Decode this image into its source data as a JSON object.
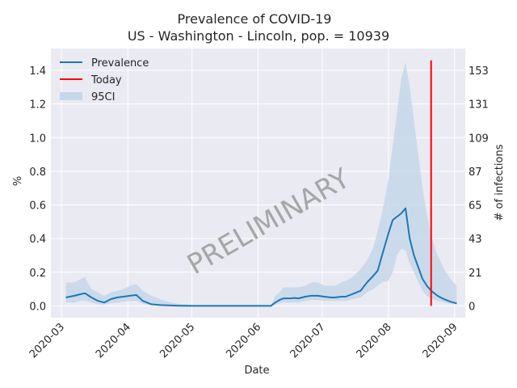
{
  "chart_data": {
    "type": "line",
    "title": "Prevalence of COVID-19",
    "subtitle": "US - Washington - Lincoln, pop. = 10939",
    "xlabel": "Date",
    "ylabel": "%",
    "y2label": "# of infections",
    "watermark": "PRELIMINARY",
    "x_ticks": [
      "2020-03",
      "2020-04",
      "2020-05",
      "2020-06",
      "2020-07",
      "2020-08",
      "2020-09"
    ],
    "x_tick_dates": [
      "2020-03-01",
      "2020-04-01",
      "2020-05-01",
      "2020-06-01",
      "2020-07-01",
      "2020-08-01",
      "2020-09-01"
    ],
    "xlim": [
      "2020-02-25",
      "2020-09-06"
    ],
    "y_ticks": [
      "0.0",
      "0.2",
      "0.4",
      "0.6",
      "0.8",
      "1.0",
      "1.2",
      "1.4"
    ],
    "y_tick_values": [
      0,
      0.2,
      0.4,
      0.6,
      0.8,
      1.0,
      1.2,
      1.4
    ],
    "ylim": [
      -0.07,
      1.53
    ],
    "y2_ticks": [
      "0",
      "21",
      "43",
      "65",
      "87",
      "109",
      "131",
      "153"
    ],
    "grid": true,
    "legend": {
      "position": "top-left",
      "entries": [
        {
          "label": "Prevalence",
          "kind": "line",
          "color": "#1f77b4"
        },
        {
          "label": "Today",
          "kind": "line",
          "color": "#ff0000"
        },
        {
          "label": "95CI",
          "kind": "patch",
          "color": "#c6d7ea"
        }
      ]
    },
    "today": {
      "date": "2020-08-21",
      "y_range": [
        0,
        1.46
      ]
    },
    "series": [
      {
        "name": "Prevalence",
        "color": "#1f77b4",
        "x": [
          "2020-03-03",
          "2020-03-07",
          "2020-03-10",
          "2020-03-12",
          "2020-03-15",
          "2020-03-18",
          "2020-03-21",
          "2020-03-24",
          "2020-03-27",
          "2020-03-30",
          "2020-04-02",
          "2020-04-05",
          "2020-04-08",
          "2020-04-12",
          "2020-04-16",
          "2020-04-20",
          "2020-04-25",
          "2020-05-01",
          "2020-05-10",
          "2020-05-20",
          "2020-06-01",
          "2020-06-07",
          "2020-06-09",
          "2020-06-11",
          "2020-06-13",
          "2020-06-16",
          "2020-06-18",
          "2020-06-20",
          "2020-06-23",
          "2020-06-26",
          "2020-06-29",
          "2020-07-02",
          "2020-07-05",
          "2020-07-07",
          "2020-07-10",
          "2020-07-12",
          "2020-07-15",
          "2020-07-19",
          "2020-07-22",
          "2020-07-25",
          "2020-07-27",
          "2020-07-29",
          "2020-08-01",
          "2020-08-03",
          "2020-08-05",
          "2020-08-07",
          "2020-08-09",
          "2020-08-11",
          "2020-08-13",
          "2020-08-15",
          "2020-08-17",
          "2020-08-19",
          "2020-08-21",
          "2020-08-24",
          "2020-08-27",
          "2020-08-30",
          "2020-09-02"
        ],
        "values": [
          0.05,
          0.06,
          0.07,
          0.075,
          0.05,
          0.03,
          0.02,
          0.04,
          0.05,
          0.055,
          0.06,
          0.065,
          0.03,
          0.01,
          0.005,
          0.003,
          0.001,
          0,
          0,
          0,
          0,
          0,
          0.02,
          0.035,
          0.045,
          0.045,
          0.047,
          0.045,
          0.055,
          0.06,
          0.06,
          0.055,
          0.05,
          0.05,
          0.055,
          0.055,
          0.07,
          0.09,
          0.14,
          0.18,
          0.21,
          0.3,
          0.43,
          0.51,
          0.53,
          0.55,
          0.58,
          0.4,
          0.3,
          0.23,
          0.16,
          0.12,
          0.09,
          0.06,
          0.04,
          0.025,
          0.015
        ]
      },
      {
        "name": "95CI",
        "color": "#c6d7ea",
        "x": [
          "2020-03-03",
          "2020-03-07",
          "2020-03-10",
          "2020-03-12",
          "2020-03-15",
          "2020-03-18",
          "2020-03-21",
          "2020-03-24",
          "2020-03-27",
          "2020-03-30",
          "2020-04-02",
          "2020-04-05",
          "2020-04-08",
          "2020-04-12",
          "2020-04-16",
          "2020-04-20",
          "2020-04-25",
          "2020-05-01",
          "2020-05-10",
          "2020-05-20",
          "2020-06-01",
          "2020-06-07",
          "2020-06-09",
          "2020-06-11",
          "2020-06-13",
          "2020-06-16",
          "2020-06-18",
          "2020-06-20",
          "2020-06-23",
          "2020-06-26",
          "2020-06-29",
          "2020-07-02",
          "2020-07-05",
          "2020-07-07",
          "2020-07-10",
          "2020-07-12",
          "2020-07-15",
          "2020-07-19",
          "2020-07-22",
          "2020-07-25",
          "2020-07-27",
          "2020-07-29",
          "2020-08-01",
          "2020-08-03",
          "2020-08-05",
          "2020-08-07",
          "2020-08-09",
          "2020-08-11",
          "2020-08-13",
          "2020-08-15",
          "2020-08-17",
          "2020-08-19",
          "2020-08-21",
          "2020-08-24",
          "2020-08-27",
          "2020-08-30",
          "2020-09-02"
        ],
        "upper": [
          0.14,
          0.14,
          0.16,
          0.17,
          0.1,
          0.08,
          0.06,
          0.08,
          0.09,
          0.1,
          0.12,
          0.13,
          0.09,
          0.06,
          0.04,
          0.025,
          0.012,
          0.005,
          0.002,
          0.001,
          0.001,
          0.002,
          0.06,
          0.08,
          0.11,
          0.11,
          0.11,
          0.11,
          0.12,
          0.14,
          0.14,
          0.12,
          0.12,
          0.12,
          0.14,
          0.15,
          0.17,
          0.22,
          0.27,
          0.35,
          0.45,
          0.55,
          0.75,
          0.95,
          1.15,
          1.35,
          1.45,
          1.3,
          1.1,
          0.9,
          0.7,
          0.55,
          0.42,
          0.3,
          0.22,
          0.16,
          0.12
        ],
        "lower": [
          0.02,
          0.02,
          0.03,
          0.03,
          0.02,
          0.01,
          0.008,
          0.015,
          0.02,
          0.025,
          0.03,
          0.03,
          0.012,
          0.004,
          0.002,
          0.001,
          0.0005,
          0,
          0,
          0,
          0,
          0,
          0.008,
          0.015,
          0.02,
          0.02,
          0.02,
          0.02,
          0.03,
          0.035,
          0.035,
          0.03,
          0.03,
          0.03,
          0.03,
          0.03,
          0.04,
          0.05,
          0.08,
          0.1,
          0.12,
          0.14,
          0.15,
          0.2,
          0.3,
          0.34,
          0.33,
          0.25,
          0.2,
          0.14,
          0.09,
          0.06,
          0.045,
          0.03,
          0.02,
          0.012,
          0.008
        ]
      }
    ]
  }
}
